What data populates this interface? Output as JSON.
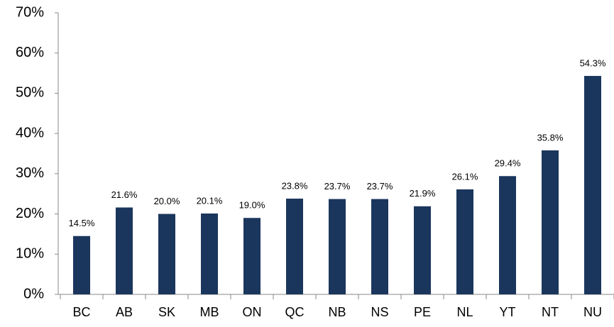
{
  "chart_data": {
    "type": "bar",
    "categories": [
      "BC",
      "AB",
      "SK",
      "MB",
      "ON",
      "QC",
      "NB",
      "NS",
      "PE",
      "NL",
      "YT",
      "NT",
      "NU"
    ],
    "values": [
      14.5,
      21.6,
      20.0,
      20.1,
      19.0,
      23.8,
      23.7,
      23.7,
      21.9,
      26.1,
      29.4,
      35.8,
      54.3
    ],
    "value_labels": [
      "14.5%",
      "21.6%",
      "20.0%",
      "20.1%",
      "19.0%",
      "23.8%",
      "23.7%",
      "23.7%",
      "21.9%",
      "26.1%",
      "29.4%",
      "35.8%",
      "54.3%"
    ],
    "color": "#1b365d",
    "ylim": [
      0,
      70
    ],
    "yticks": [
      {
        "value": 0,
        "label": "0%"
      },
      {
        "value": 10,
        "label": "10%"
      },
      {
        "value": 20,
        "label": "20%"
      },
      {
        "value": 30,
        "label": "30%"
      },
      {
        "value": 40,
        "label": "40%"
      },
      {
        "value": 50,
        "label": "50%"
      },
      {
        "value": 60,
        "label": "60%"
      },
      {
        "value": 70,
        "label": "70%"
      }
    ],
    "grid": false
  }
}
